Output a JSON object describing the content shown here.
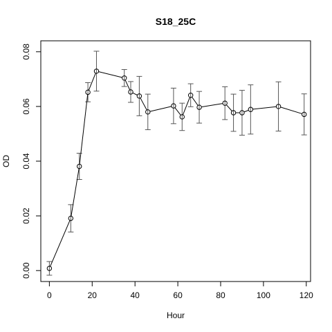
{
  "chart_data": {
    "type": "line",
    "title": "S18_25C",
    "xlabel": "Hour",
    "ylabel": "OD",
    "xlim": [
      -4,
      122
    ],
    "ylim": [
      -0.004,
      0.084
    ],
    "x_ticks": [
      0,
      20,
      40,
      60,
      80,
      100,
      120
    ],
    "x_tick_labels": [
      "0",
      "20",
      "40",
      "60",
      "80",
      "100",
      "120"
    ],
    "y_ticks": [
      0.0,
      0.02,
      0.04,
      0.06,
      0.08
    ],
    "y_tick_labels": [
      "0.00",
      "0.02",
      "0.04",
      "0.06",
      "0.08"
    ],
    "grid": false,
    "legend": "none",
    "marker": "open-circle",
    "error_bars": true,
    "colors": {
      "line": "#000000",
      "error_bar": "#555555",
      "axes": "#000000"
    },
    "series": [
      {
        "points": [
          {
            "x": 0,
            "y": 0.0008,
            "err": 0.0025
          },
          {
            "x": 10,
            "y": 0.0191,
            "err": 0.005
          },
          {
            "x": 14,
            "y": 0.0381,
            "err": 0.0048
          },
          {
            "x": 18,
            "y": 0.0652,
            "err": 0.0035
          },
          {
            "x": 22,
            "y": 0.0729,
            "err": 0.0073
          },
          {
            "x": 35,
            "y": 0.0704,
            "err": 0.0031
          },
          {
            "x": 38,
            "y": 0.0653,
            "err": 0.0038
          },
          {
            "x": 42,
            "y": 0.0638,
            "err": 0.0072
          },
          {
            "x": 46,
            "y": 0.058,
            "err": 0.0065
          },
          {
            "x": 58,
            "y": 0.0602,
            "err": 0.0065
          },
          {
            "x": 62,
            "y": 0.0562,
            "err": 0.005
          },
          {
            "x": 66,
            "y": 0.0641,
            "err": 0.0042
          },
          {
            "x": 70,
            "y": 0.0597,
            "err": 0.0058
          },
          {
            "x": 82,
            "y": 0.0612,
            "err": 0.006
          },
          {
            "x": 86,
            "y": 0.0577,
            "err": 0.0068
          },
          {
            "x": 90,
            "y": 0.0577,
            "err": 0.0082
          },
          {
            "x": 94,
            "y": 0.0589,
            "err": 0.009
          },
          {
            "x": 107,
            "y": 0.06,
            "err": 0.009
          },
          {
            "x": 119,
            "y": 0.0571,
            "err": 0.0075
          }
        ]
      }
    ]
  }
}
